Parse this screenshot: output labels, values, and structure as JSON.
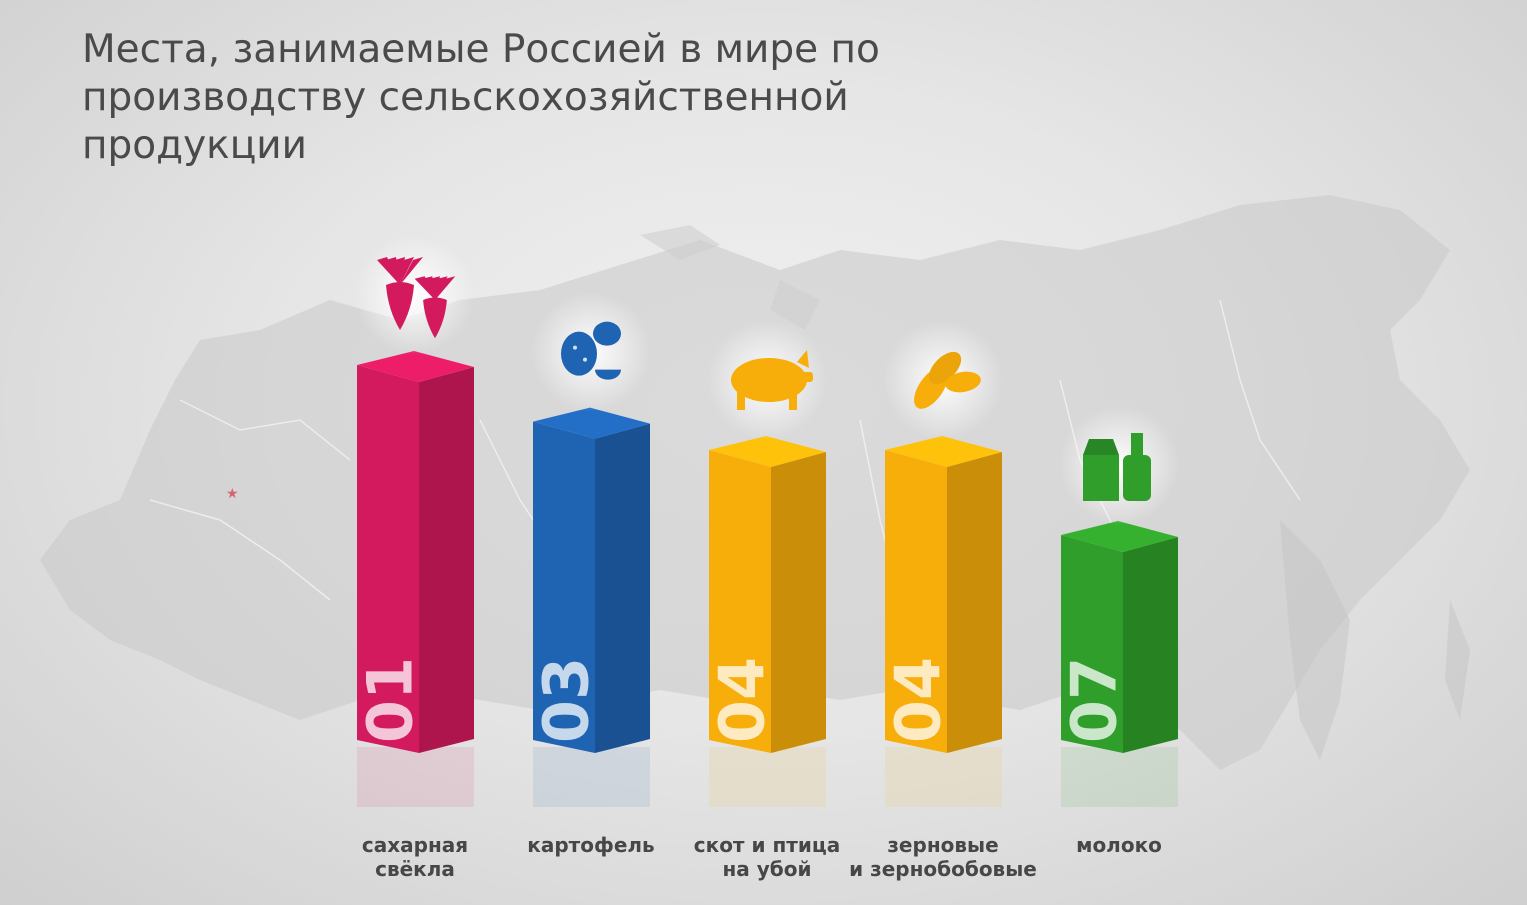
{
  "title": "Места, занимаемые Россией в мире по производству сельскохозяйственной продукции",
  "chart_data": {
    "type": "bar",
    "title": "Места, занимаемые Россией в мире по производству сельскохозяйственной продукции",
    "xlabel": "",
    "ylabel": "",
    "categories": [
      "сахарная свёкла",
      "картофель",
      "скот и птица на убой",
      "зерновые и зернобобовые",
      "молоко"
    ],
    "rank_labels": [
      "01",
      "03",
      "04",
      "04",
      "07"
    ],
    "values": [
      1,
      3,
      4,
      4,
      7
    ],
    "colors": [
      "#d41a5e",
      "#1f63b3",
      "#f7ad0a",
      "#f7ad0a",
      "#2f9e2a"
    ],
    "icons": [
      "sugar-beet-icon",
      "potato-icon",
      "pig-icon",
      "grain-icon",
      "milk-icon"
    ],
    "grid": false,
    "legend": "none"
  }
}
